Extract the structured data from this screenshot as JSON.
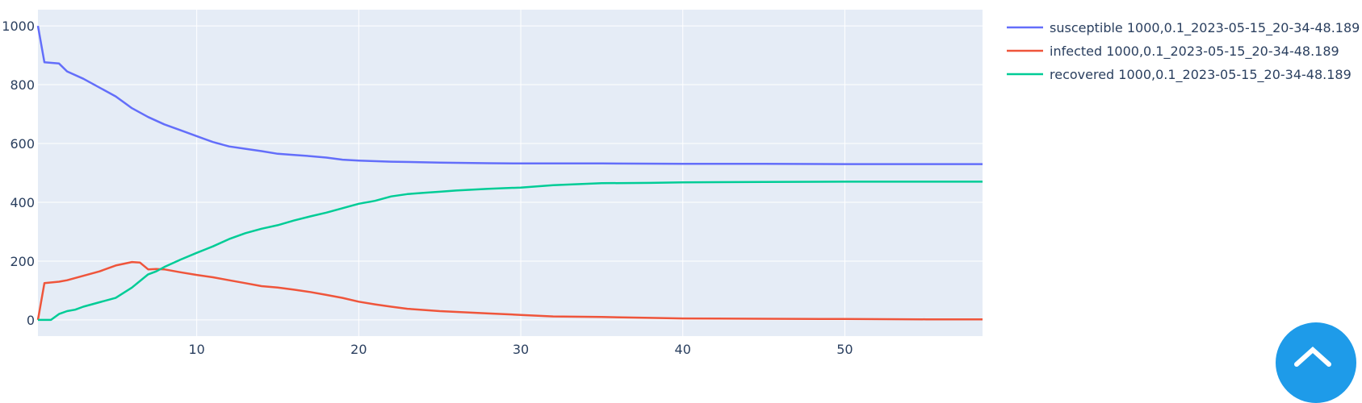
{
  "chart_data": {
    "type": "line",
    "title": "",
    "xlabel": "",
    "ylabel": "",
    "xlim": [
      0.2,
      58.5
    ],
    "ylim": [
      -55,
      1055
    ],
    "xticks": [
      10,
      20,
      30,
      40,
      50
    ],
    "yticks": [
      0,
      200,
      400,
      600,
      800,
      1000
    ],
    "grid": true,
    "legend_position": "top-right",
    "series": [
      {
        "name": "susceptible 1000,0.1_2023-05-15_20-34-48.189",
        "color": "#636efa",
        "x": [
          0.2,
          0.6,
          1.5,
          2,
          3,
          4,
          5,
          6,
          7,
          8,
          9,
          10,
          11,
          12,
          13,
          14,
          15,
          16,
          17,
          18,
          19,
          20,
          22,
          25,
          28,
          30,
          35,
          40,
          45,
          50,
          55,
          58.5
        ],
        "y": [
          1000,
          876,
          872,
          845,
          820,
          790,
          760,
          720,
          690,
          665,
          645,
          625,
          605,
          590,
          582,
          574,
          565,
          561,
          557,
          552,
          545,
          542,
          538,
          535,
          533,
          532,
          532,
          531,
          531,
          530,
          530,
          530
        ]
      },
      {
        "name": "infected 1000,0.1_2023-05-15_20-34-48.189",
        "color": "#ef553b",
        "x": [
          0.2,
          0.6,
          1.5,
          2,
          3,
          4,
          5,
          6,
          6.5,
          7,
          7.5,
          8,
          9,
          10,
          11,
          12,
          13,
          14,
          15,
          16,
          17,
          18,
          19,
          20,
          21,
          22,
          23,
          25,
          28,
          30,
          32,
          35,
          38,
          40,
          45,
          50,
          55,
          58.5
        ],
        "y": [
          0,
          125,
          130,
          135,
          150,
          165,
          185,
          197,
          195,
          172,
          173,
          172,
          162,
          153,
          145,
          135,
          125,
          115,
          110,
          103,
          95,
          85,
          75,
          62,
          53,
          45,
          38,
          30,
          22,
          17,
          12,
          10,
          7,
          5,
          4,
          3,
          2,
          2
        ]
      },
      {
        "name": "recovered 1000,0.1_2023-05-15_20-34-48.189",
        "color": "#00cc96",
        "x": [
          0.2,
          1,
          1.5,
          2,
          2.5,
          3,
          4,
          5,
          6,
          7,
          7.5,
          8,
          9,
          10,
          11,
          12,
          13,
          14,
          15,
          16,
          17,
          18,
          19,
          20,
          21,
          22,
          23,
          24,
          25,
          26,
          28,
          30,
          32,
          35,
          38,
          40,
          45,
          50,
          55,
          58.5
        ],
        "y": [
          0,
          0,
          20,
          30,
          35,
          45,
          60,
          75,
          110,
          155,
          165,
          180,
          205,
          228,
          250,
          275,
          295,
          310,
          322,
          338,
          352,
          365,
          380,
          395,
          405,
          420,
          428,
          432,
          436,
          440,
          446,
          450,
          458,
          465,
          466,
          468,
          469,
          470,
          470,
          470
        ]
      }
    ]
  }
}
